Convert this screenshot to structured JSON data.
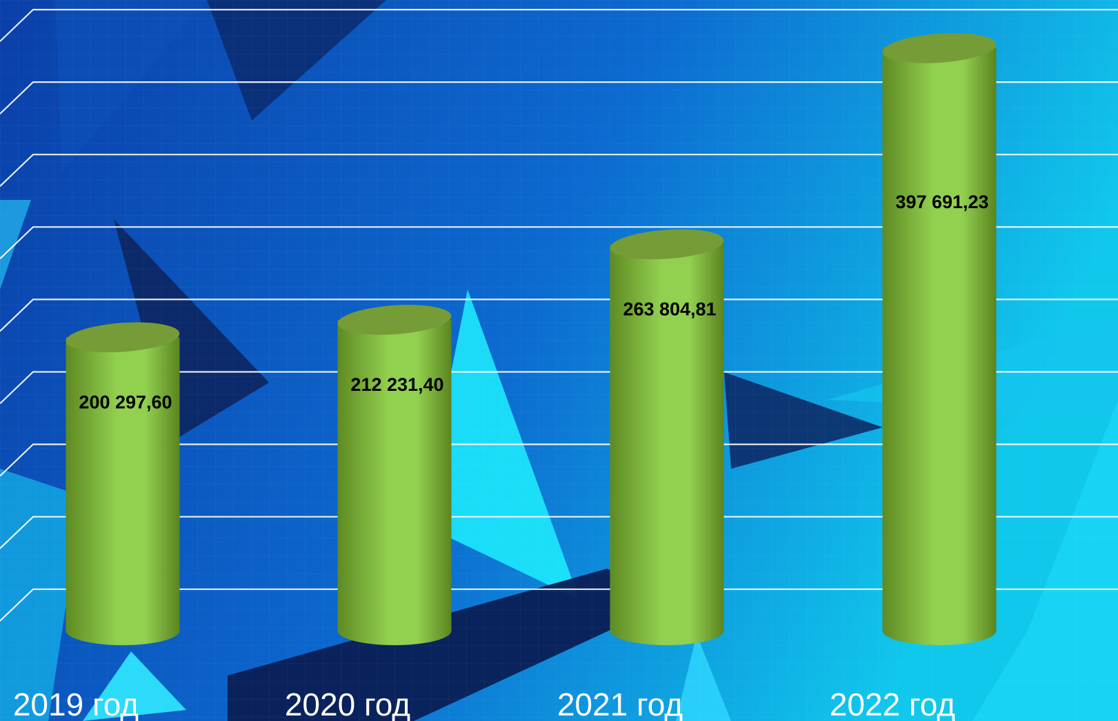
{
  "chart_data": {
    "type": "bar",
    "style": "cylinder",
    "categories": [
      "2019 год",
      "2020 год",
      "2021 год",
      "2022 год"
    ],
    "values": [
      200297.6,
      212231.4,
      263804.81,
      397691.23
    ],
    "value_labels": [
      "200 297,60",
      "212 231,40",
      "263 804,81",
      "397 691,23"
    ],
    "color": "#92d050",
    "ylim": [
      0,
      400000
    ]
  }
}
